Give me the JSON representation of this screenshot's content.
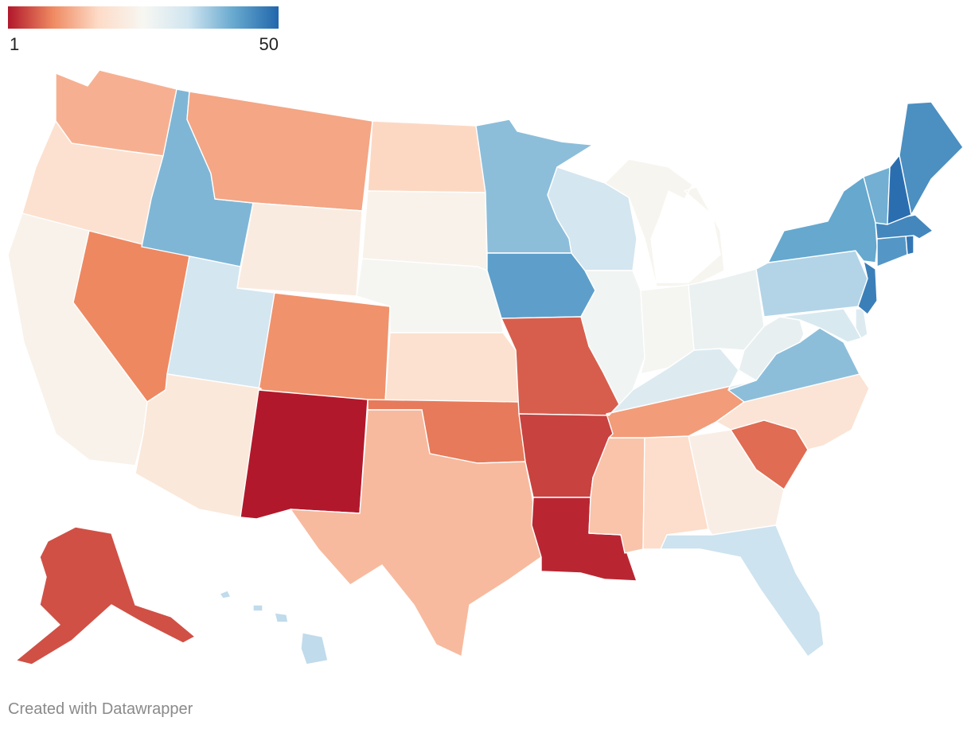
{
  "legend": {
    "min_label": "1",
    "max_label": "50",
    "min": 1,
    "max": 50,
    "gradient": [
      "#b2182b",
      "#ef8a62",
      "#fddbc7",
      "#f7f7f2",
      "#d1e5f0",
      "#67a9cf",
      "#2166ac"
    ]
  },
  "footer": {
    "credit": "Created with Datawrapper"
  },
  "map_data": {
    "type": "choropleth",
    "region": "United States",
    "states": [
      {
        "abbr": "NM",
        "value": 1
      },
      {
        "abbr": "LA",
        "value": 2
      },
      {
        "abbr": "AR",
        "value": 4
      },
      {
        "abbr": "AK",
        "value": 5
      },
      {
        "abbr": "MO",
        "value": 6
      },
      {
        "abbr": "SC",
        "value": 7
      },
      {
        "abbr": "OK",
        "value": 8
      },
      {
        "abbr": "NV",
        "value": 9
      },
      {
        "abbr": "CO",
        "value": 10
      },
      {
        "abbr": "TN",
        "value": 11
      },
      {
        "abbr": "MT",
        "value": 12
      },
      {
        "abbr": "WA",
        "value": 13
      },
      {
        "abbr": "TX",
        "value": 14
      },
      {
        "abbr": "MS",
        "value": 15
      },
      {
        "abbr": "ND",
        "value": 17
      },
      {
        "abbr": "AL",
        "value": 18
      },
      {
        "abbr": "KS",
        "value": 19
      },
      {
        "abbr": "OR",
        "value": 19
      },
      {
        "abbr": "NC",
        "value": 20
      },
      {
        "abbr": "AZ",
        "value": 21
      },
      {
        "abbr": "WY",
        "value": 22
      },
      {
        "abbr": "GA",
        "value": 23
      },
      {
        "abbr": "SD",
        "value": 24
      },
      {
        "abbr": "CA",
        "value": 24
      },
      {
        "abbr": "MI",
        "value": 25
      },
      {
        "abbr": "NE",
        "value": 26
      },
      {
        "abbr": "IN",
        "value": 26
      },
      {
        "abbr": "IL",
        "value": 27
      },
      {
        "abbr": "OH",
        "value": 28
      },
      {
        "abbr": "WV",
        "value": 29
      },
      {
        "abbr": "KY",
        "value": 31
      },
      {
        "abbr": "DE",
        "value": 31
      },
      {
        "abbr": "MD",
        "value": 32
      },
      {
        "abbr": "UT",
        "value": 33
      },
      {
        "abbr": "WI",
        "value": 33
      },
      {
        "abbr": "FL",
        "value": 34
      },
      {
        "abbr": "HI",
        "value": 35
      },
      {
        "abbr": "PA",
        "value": 36
      },
      {
        "abbr": "VA",
        "value": 39
      },
      {
        "abbr": "MN",
        "value": 39
      },
      {
        "abbr": "ID",
        "value": 40
      },
      {
        "abbr": "VT",
        "value": 41
      },
      {
        "abbr": "NY",
        "value": 42
      },
      {
        "abbr": "IA",
        "value": 43
      },
      {
        "abbr": "CT",
        "value": 44
      },
      {
        "abbr": "ME",
        "value": 45
      },
      {
        "abbr": "MA",
        "value": 46
      },
      {
        "abbr": "NJ",
        "value": 47
      },
      {
        "abbr": "RI",
        "value": 48
      },
      {
        "abbr": "NH",
        "value": 49
      }
    ]
  }
}
